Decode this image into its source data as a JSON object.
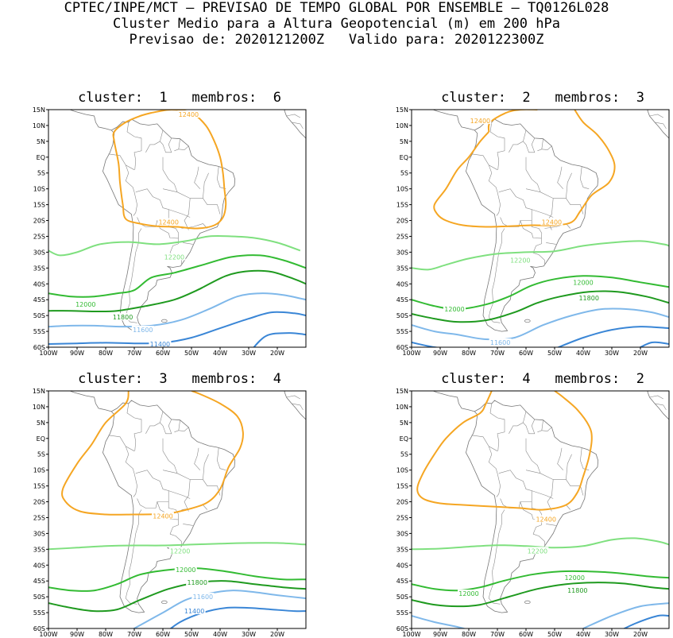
{
  "header": {
    "line1": "CPTEC/INPE/MCT – PREVISAO DE TEMPO GLOBAL POR ENSEMBLE – TQ0126L028",
    "line2": "Cluster Medio para a Altura Geopotencial (m) em 200 hPa",
    "line3": "Previsao de: 2020121200Z   Valido para: 2020122300Z"
  },
  "axes": {
    "lat_labels": [
      "15N",
      "10N",
      "5N",
      "EQ",
      "5S",
      "10S",
      "15S",
      "20S",
      "25S",
      "30S",
      "35S",
      "40S",
      "45S",
      "50S",
      "55S",
      "60S"
    ],
    "lon_labels": [
      "100W",
      "90W",
      "80W",
      "70W",
      "60W",
      "50W",
      "40W",
      "30W",
      "20W"
    ],
    "lat_range": [
      -60,
      15
    ],
    "lon_range": [
      -100,
      -10
    ]
  },
  "contour_colors": {
    "12400": "#f5a623",
    "12200": "#7fe07f",
    "12000": "#33bb33",
    "11800": "#1f9a1f",
    "11600": "#7fb8ea",
    "11400": "#3a86d6"
  },
  "panels": [
    {
      "title": "cluster:  1   membros:  6",
      "labels": [
        {
          "text": "12400",
          "color": "#f5a623",
          "lon": -51,
          "lat": 13.5
        },
        {
          "text": "12400",
          "color": "#f5a623",
          "lon": -58,
          "lat": -20.5
        },
        {
          "text": "12200",
          "color": "#7fe07f",
          "lon": -56,
          "lat": -31.5
        },
        {
          "text": "12000",
          "color": "#33bb33",
          "lon": -87,
          "lat": -46.5
        },
        {
          "text": "11800",
          "color": "#1f9a1f",
          "lon": -74,
          "lat": -50.5
        },
        {
          "text": "11600",
          "color": "#7fb8ea",
          "lon": -67,
          "lat": -54.5
        },
        {
          "text": "11400",
          "color": "#3a86d6",
          "lon": -61,
          "lat": -59
        }
      ]
    },
    {
      "title": "cluster:  2   membros:  3",
      "labels": [
        {
          "text": "12400",
          "color": "#f5a623",
          "lon": -76,
          "lat": 11.5
        },
        {
          "text": "12400",
          "color": "#f5a623",
          "lon": -51,
          "lat": -20.5
        },
        {
          "text": "12200",
          "color": "#7fe07f",
          "lon": -62,
          "lat": -32.5
        },
        {
          "text": "12000",
          "color": "#33bb33",
          "lon": -85,
          "lat": -48
        },
        {
          "text": "12000",
          "color": "#33bb33",
          "lon": -40,
          "lat": -39.5
        },
        {
          "text": "11800",
          "color": "#1f9a1f",
          "lon": -38,
          "lat": -44.5
        },
        {
          "text": "11600",
          "color": "#7fb8ea",
          "lon": -69,
          "lat": -58.5
        }
      ]
    },
    {
      "title": "cluster:  3   membros:  4",
      "labels": [
        {
          "text": "12400",
          "color": "#f5a623",
          "lon": -60,
          "lat": -24.5
        },
        {
          "text": "12200",
          "color": "#7fe07f",
          "lon": -54,
          "lat": -35.5
        },
        {
          "text": "12000",
          "color": "#33bb33",
          "lon": -52,
          "lat": -41.5
        },
        {
          "text": "11800",
          "color": "#1f9a1f",
          "lon": -48,
          "lat": -45.5
        },
        {
          "text": "11600",
          "color": "#7fb8ea",
          "lon": -46,
          "lat": -50
        },
        {
          "text": "11400",
          "color": "#3a86d6",
          "lon": -49,
          "lat": -54.5
        }
      ]
    },
    {
      "title": "cluster:  4   membros:  2",
      "labels": [
        {
          "text": "12400",
          "color": "#f5a623",
          "lon": -53,
          "lat": -25.5
        },
        {
          "text": "12200",
          "color": "#7fe07f",
          "lon": -56,
          "lat": -35.5
        },
        {
          "text": "12000",
          "color": "#33bb33",
          "lon": -80,
          "lat": -49
        },
        {
          "text": "12000",
          "color": "#33bb33",
          "lon": -43,
          "lat": -44
        },
        {
          "text": "11800",
          "color": "#1f9a1f",
          "lon": -42,
          "lat": -48
        }
      ]
    }
  ]
}
